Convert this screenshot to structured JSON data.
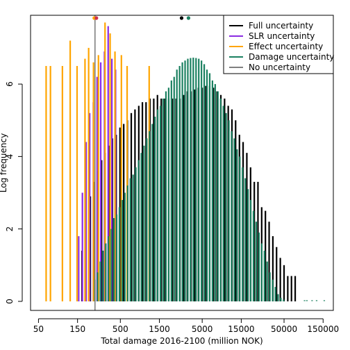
{
  "chart_data": {
    "type": "bar",
    "title": "",
    "xlabel": "Total damage 2016-2100 (million NOK)",
    "ylabel": "Log frequency",
    "x_scale": "log",
    "xlim": [
      40,
      200000
    ],
    "ylim": [
      -0.25,
      7.9
    ],
    "x_ticks": [
      50,
      150,
      500,
      1500,
      5000,
      15000,
      50000,
      150000
    ],
    "x_tick_labels": [
      "50",
      "150",
      "500",
      "1500",
      "5000",
      "15000",
      "50000",
      "150000"
    ],
    "y_ticks": [
      0,
      2,
      4,
      6
    ],
    "y_tick_labels": [
      "0",
      "2",
      "4",
      "6"
    ],
    "legend_position": "top-right",
    "legend": [
      {
        "label": "Full uncertainty",
        "color": "#000000"
      },
      {
        "label": "SLR uncertainty",
        "color": "#8a2be2"
      },
      {
        "label": "Effect uncertainty",
        "color": "#ffa500"
      },
      {
        "label": "Damage uncertainty",
        "color": "#1a8060"
      },
      {
        "label": "No uncertainty",
        "color": "#7f7f7f"
      }
    ],
    "series": [
      {
        "name": "Full uncertainty",
        "color": "#000000",
        "x": [
          170,
          190,
          215,
          240,
          265,
          295,
          325,
          360,
          400,
          445,
          495,
          550,
          610,
          680,
          755,
          840,
          930,
          1030,
          1150,
          1280,
          1420,
          1580,
          1750,
          1950,
          2160,
          2400,
          2670,
          2960,
          3290,
          3650,
          4050,
          4500,
          5000,
          5550,
          6170,
          6850,
          7600,
          8450,
          9380,
          10400,
          11550,
          12800,
          14250,
          15800,
          17550,
          19500,
          21650,
          24000,
          26650,
          29600,
          32850,
          36500,
          40500,
          45000,
          50000,
          55500,
          61600,
          68400
        ],
        "values": [
          1.4,
          2.1,
          2.9,
          3.3,
          3.6,
          3.9,
          4.1,
          4.3,
          4.5,
          4.6,
          4.8,
          4.9,
          5.0,
          5.2,
          5.3,
          5.4,
          5.5,
          5.5,
          5.6,
          5.6,
          5.7,
          5.6,
          5.6,
          5.6,
          5.6,
          5.6,
          5.6,
          5.7,
          5.8,
          5.8,
          5.85,
          5.9,
          5.9,
          5.95,
          5.95,
          5.9,
          5.8,
          5.7,
          5.6,
          5.4,
          5.3,
          5.0,
          4.6,
          4.4,
          4.1,
          3.7,
          3.3,
          3.3,
          2.6,
          2.5,
          2.2,
          1.8,
          1.5,
          1.2,
          1.0,
          0.7,
          0.7,
          0.7
        ]
      },
      {
        "name": "SLR uncertainty",
        "color": "#8a2be2",
        "x": [
          155,
          172,
          191,
          211,
          234,
          260,
          288,
          320,
          355,
          394,
          437
        ],
        "values": [
          1.8,
          3.0,
          4.4,
          5.2,
          5.5,
          6.2,
          6.6,
          6.9,
          7.6,
          6.7,
          6.4
        ]
      },
      {
        "name": "Effect uncertainty",
        "color": "#ffa500",
        "x": [
          62,
          70,
          98,
          122,
          148,
          185,
          205,
          235,
          270,
          325,
          375,
          430,
          515,
          605,
          1125
        ],
        "values": [
          6.5,
          6.5,
          6.5,
          7.2,
          6.5,
          6.7,
          7.0,
          6.6,
          6.8,
          7.7,
          7.4,
          6.9,
          6.8,
          6.5,
          6.5
        ]
      },
      {
        "name": "Damage uncertainty",
        "color": "#1a8060",
        "x": [
          244,
          263,
          285,
          307,
          332,
          358,
          387,
          418,
          451,
          487,
          526,
          568,
          614,
          663,
          716,
          773,
          835,
          902,
          974,
          1052,
          1136,
          1227,
          1325,
          1431,
          1545,
          1669,
          1803,
          1947,
          2103,
          2271,
          2453,
          2649,
          2861,
          3090,
          3337,
          3604,
          3892,
          4204,
          4540,
          4903,
          5295,
          5719,
          6177,
          6671,
          7205,
          7781,
          8404,
          9076,
          9802,
          10586,
          11433,
          12348,
          13336,
          14402,
          15555,
          16799,
          18143,
          19594,
          21162,
          22855,
          24683,
          26658,
          28790,
          31093,
          33581,
          36267,
          39169,
          42302,
          45686,
          49341,
          89000,
          95000,
          110000,
          125000,
          155000
        ],
        "values": [
          0.6,
          0.8,
          1.1,
          1.4,
          1.6,
          1.8,
          2.0,
          2.3,
          2.4,
          2.6,
          2.8,
          3.0,
          3.2,
          3.4,
          3.5,
          3.7,
          3.9,
          4.1,
          4.3,
          4.5,
          4.7,
          4.9,
          5.1,
          5.3,
          5.4,
          5.6,
          5.8,
          5.9,
          6.1,
          6.2,
          6.4,
          6.5,
          6.6,
          6.65,
          6.7,
          6.72,
          6.73,
          6.72,
          6.7,
          6.65,
          6.55,
          6.4,
          6.3,
          6.1,
          6.0,
          5.8,
          5.6,
          5.4,
          5.2,
          5.0,
          4.7,
          4.5,
          4.2,
          4.0,
          3.7,
          3.4,
          3.1,
          2.8,
          2.5,
          2.2,
          1.9,
          1.6,
          1.4,
          1.1,
          0.8,
          0.6,
          0.4,
          0.2,
          0.1,
          0.05,
          0.02,
          0.02,
          0.02,
          0.02,
          0.02
        ]
      },
      {
        "name": "No uncertainty",
        "color": "#7f7f7f",
        "x": [
          245
        ],
        "values": [
          7.9
        ]
      }
    ],
    "mean_markers": [
      {
        "label": "Effect uncertainty",
        "x": 240,
        "color": "#ffa500"
      },
      {
        "label": "SLR uncertainty",
        "x": 255,
        "color": "#d0304c"
      },
      {
        "label": "Full uncertainty",
        "x": 2800,
        "color": "#000000"
      },
      {
        "label": "Damage uncertainty",
        "x": 3400,
        "color": "#1a8060"
      }
    ]
  }
}
